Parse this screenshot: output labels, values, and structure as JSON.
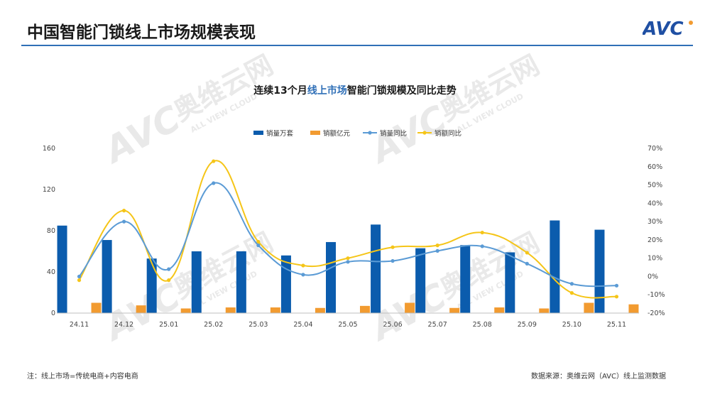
{
  "header": {
    "title": "中国智能门锁线上市场规模表现",
    "logo_text": "AVC"
  },
  "colors": {
    "accent": "#2f6fb7",
    "bar_volume": "#0b5cad",
    "bar_revenue": "#f29b30",
    "line_volume_yoy": "#5b9bd5",
    "line_revenue_yoy": "#f5c518"
  },
  "watermark": {
    "brand": "奥维云网",
    "sub": "ALL VIEW CLOUD"
  },
  "chart_data": {
    "type": "bar",
    "title_parts": [
      "连续13个月",
      "线上市场",
      "智能门锁规模及同比走势"
    ],
    "categories": [
      "24.11",
      "24.12",
      "25.01",
      "25.02",
      "25.03",
      "25.04",
      "25.05",
      "25.06",
      "25.07",
      "25.08",
      "25.09",
      "25.10",
      "25.11"
    ],
    "y_left": {
      "ylim": [
        0,
        160
      ],
      "ticks": [
        "0",
        "40",
        "80",
        "120",
        "160"
      ]
    },
    "y_right": {
      "ylim": [
        -20,
        70
      ],
      "ticks": [
        "-20%",
        "-10%",
        "0%",
        "10%",
        "20%",
        "30%",
        "40%",
        "50%",
        "60%",
        "70%"
      ]
    },
    "legend_position": "top-center",
    "grid": false,
    "series": [
      {
        "name": "销量万套",
        "kind": "bar",
        "axis": "left",
        "values": [
          85,
          71,
          53,
          60,
          60,
          56,
          69,
          86,
          63,
          66,
          59,
          90,
          81
        ]
      },
      {
        "name": "销额亿元",
        "kind": "bar",
        "axis": "left",
        "values": [
          10,
          7.5,
          4.5,
          5.5,
          5.5,
          5,
          7,
          10,
          5,
          5.5,
          4.5,
          10,
          8.5
        ]
      },
      {
        "name": "销量同比",
        "kind": "line",
        "axis": "right",
        "values": [
          0,
          30,
          4,
          51,
          17,
          1,
          8,
          8.5,
          14,
          16.5,
          7,
          -4,
          -5
        ]
      },
      {
        "name": "销额同比",
        "kind": "line",
        "axis": "right",
        "values": [
          -2,
          36,
          -2,
          63,
          19,
          6,
          10,
          16,
          17,
          24,
          13,
          -9,
          -11
        ]
      }
    ]
  },
  "footer": {
    "note": "注：线上市场=传统电商+内容电商",
    "source": "数据来源：奥维云网（AVC）线上监测数据"
  }
}
